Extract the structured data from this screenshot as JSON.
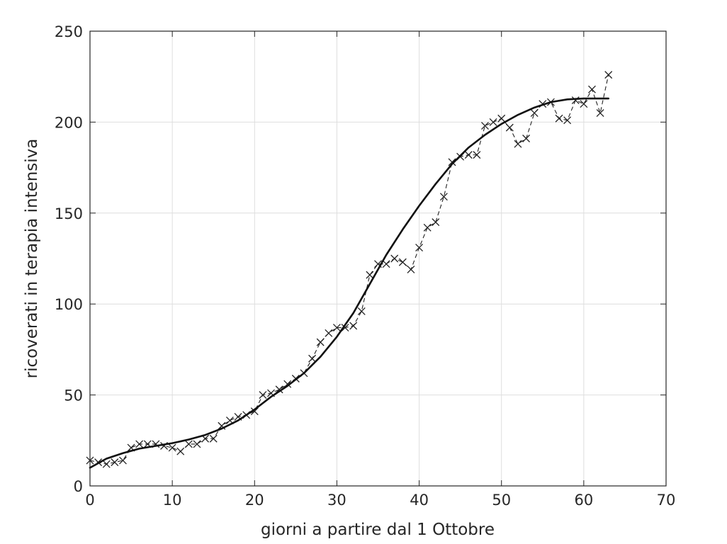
{
  "chart_data": {
    "type": "line",
    "title": "",
    "xlabel": "giorni a partire dal 1 Ottobre",
    "ylabel": "ricoverati in terapia intensiva",
    "xlim": [
      0,
      70
    ],
    "ylim": [
      0,
      250
    ],
    "xticks": [
      0,
      10,
      20,
      30,
      40,
      50,
      60,
      70
    ],
    "yticks": [
      0,
      50,
      100,
      150,
      200,
      250
    ],
    "grid": true,
    "series": [
      {
        "style": "dashed-with-x-markers",
        "color": "#222222",
        "x": [
          0,
          1,
          2,
          3,
          4,
          5,
          6,
          7,
          8,
          9,
          10,
          11,
          12,
          13,
          14,
          15,
          16,
          17,
          18,
          19,
          20,
          21,
          22,
          23,
          24,
          25,
          26,
          27,
          28,
          29,
          30,
          31,
          32,
          33,
          34,
          35,
          36,
          37,
          38,
          39,
          40,
          41,
          42,
          43,
          44,
          45,
          46,
          47,
          48,
          49,
          50,
          51,
          52,
          53,
          54,
          55,
          56,
          57,
          58,
          59,
          60,
          61,
          62,
          63
        ],
        "y": [
          14,
          13,
          12,
          13,
          14,
          21,
          23,
          23,
          23,
          22,
          21,
          19,
          23,
          23,
          26,
          26,
          33,
          36,
          38,
          39,
          41,
          50,
          51,
          53,
          56,
          59,
          62,
          70,
          79,
          84,
          87,
          87,
          88,
          96,
          116,
          122,
          122,
          125,
          123,
          119,
          131,
          142,
          145,
          159,
          178,
          181,
          182,
          182,
          198,
          200,
          202,
          197,
          188,
          191,
          205,
          210,
          211,
          202,
          201,
          212,
          210,
          218,
          205,
          226
        ]
      },
      {
        "style": "solid-fit",
        "color": "#111111",
        "x": [
          0,
          2,
          4,
          6,
          8,
          10,
          12,
          14,
          16,
          18,
          20,
          22,
          24,
          26,
          28,
          30,
          32,
          34,
          36,
          38,
          40,
          42,
          44,
          46,
          48,
          50,
          52,
          54,
          56,
          58,
          60,
          62,
          63
        ],
        "y": [
          10,
          15,
          18,
          20.5,
          22,
          23.5,
          25.5,
          28,
          31.5,
          36,
          42,
          49,
          55,
          62,
          71,
          82,
          95,
          111,
          127,
          141,
          154,
          166,
          177,
          186,
          193,
          199,
          204,
          208,
          211,
          212.5,
          213,
          213,
          213
        ]
      }
    ]
  }
}
